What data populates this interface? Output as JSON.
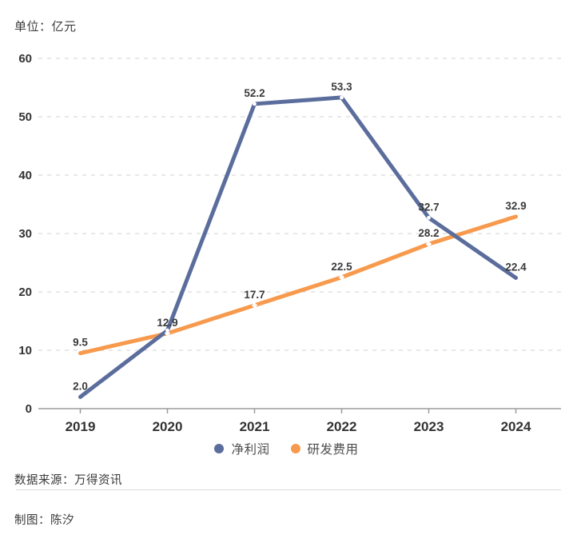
{
  "unit_label": "单位：亿元",
  "chart_data": {
    "type": "line",
    "title": "",
    "xlabel": "",
    "ylabel": "单位：亿元",
    "categories": [
      "2019",
      "2020",
      "2021",
      "2022",
      "2023",
      "2024"
    ],
    "series": [
      {
        "name": "净利润",
        "color": "#5b6d9c",
        "marker": "circle",
        "values": [
          2.0,
          13.4,
          52.2,
          53.3,
          32.7,
          22.4
        ],
        "labels": [
          "2.0",
          null,
          "52.2",
          "53.3",
          "32.7",
          "22.4"
        ]
      },
      {
        "name": "研发费用",
        "color": "#f79a4d",
        "marker": "diamond",
        "values": [
          9.5,
          12.9,
          17.7,
          22.5,
          28.2,
          32.9
        ],
        "labels": [
          "9.5",
          "12.9",
          "17.7",
          "22.5",
          "28.2",
          "32.9"
        ]
      }
    ],
    "ylim": [
      0,
      60
    ],
    "yticks": [
      0,
      10,
      20,
      30,
      40,
      50,
      60
    ],
    "grid": "horizontal-dashed",
    "legend_position": "bottom"
  },
  "legend": {
    "items": [
      {
        "label": "净利润",
        "color": "#5b6d9c"
      },
      {
        "label": "研发费用",
        "color": "#f79a4d"
      }
    ]
  },
  "footer": {
    "source": "数据来源：万得资讯",
    "author": "制图：陈汐"
  },
  "colors": {
    "axis_line": "#9c9c9c",
    "gridline": "#d9d9d9",
    "tick_text": "#333333",
    "data_label": "#3a3a3a",
    "divider": "#dcdcdc"
  }
}
